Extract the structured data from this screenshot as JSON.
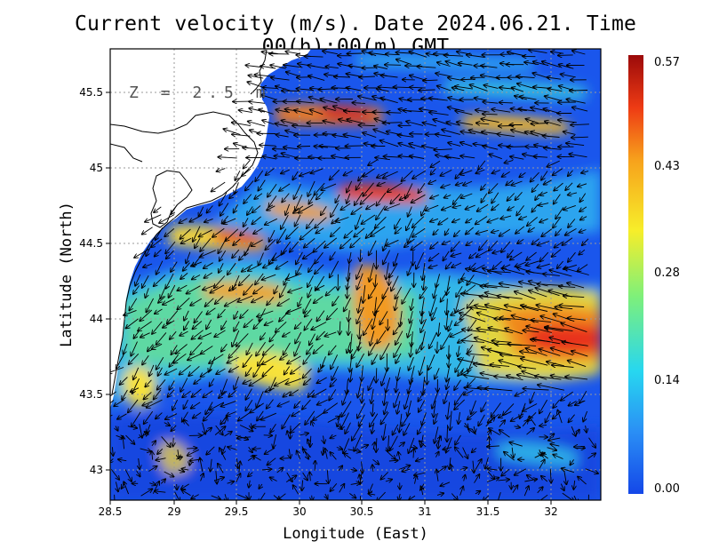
{
  "title": "Current velocity (m/s). Date 2024.06.21. Time 00(h):00(m) GMT",
  "depth_label": "Z = 2.5 m",
  "x_axis": {
    "label": "Longitude (East)",
    "range": [
      28.5,
      32.4
    ],
    "ticks": [
      "28.5",
      "29",
      "29.5",
      "30",
      "30.5",
      "31",
      "31.5",
      "32"
    ]
  },
  "y_axis": {
    "label": "Latitude (North)",
    "range": [
      42.8,
      45.8
    ],
    "ticks": [
      "43",
      "43.5",
      "44",
      "44.5",
      "45",
      "45.5"
    ]
  },
  "colorbar": {
    "ticks": [
      "0.57",
      "0.43",
      "0.28",
      "0.14",
      "0.00"
    ],
    "range": [
      0,
      0.57
    ],
    "colors": [
      "#1447e8",
      "#2a8ef5",
      "#27d7f0",
      "#7ef07a",
      "#f7ee2a",
      "#f7a21c",
      "#ee3b14",
      "#9b0a0a"
    ]
  },
  "grid": "dotted",
  "chart_data": {
    "type": "heatmap",
    "title": "Current velocity (m/s). Date 2024.06.21. Time 00(h):00(m) GMT",
    "xlabel": "Longitude (East)",
    "ylabel": "Latitude (North)",
    "xlim": [
      28.5,
      32.4
    ],
    "ylim": [
      42.8,
      45.8
    ],
    "zlim": [
      0,
      0.57
    ],
    "high_speed_regions": [
      {
        "lon": 32.1,
        "lat": 43.9,
        "speed": 0.55
      },
      {
        "lon": 30.7,
        "lat": 44.8,
        "speed": 0.5
      },
      {
        "lon": 30.4,
        "lat": 45.35,
        "speed": 0.5
      },
      {
        "lon": 30.1,
        "lat": 44.7,
        "speed": 0.45
      },
      {
        "lon": 29.5,
        "lat": 44.55,
        "speed": 0.47
      },
      {
        "lon": 30.6,
        "lat": 44.1,
        "speed": 0.45
      },
      {
        "lon": 29.2,
        "lat": 44.2,
        "speed": 0.4
      },
      {
        "lon": 29.9,
        "lat": 45.35,
        "speed": 0.45
      }
    ]
  }
}
